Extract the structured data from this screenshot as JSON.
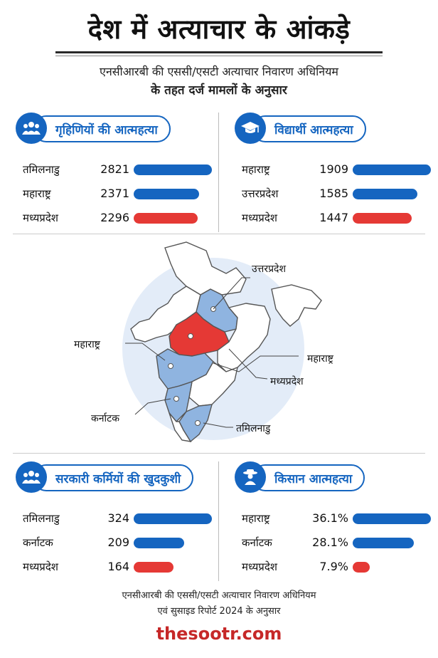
{
  "title": "देश में अत्याचार के आंकड़े",
  "subtitle_line1": "एनसीआरबी की एससी/एसटी अत्याचार निवारण अधिनियम",
  "subtitle_line2": "के तहत दर्ज मामलों के अनुसार",
  "map_labels": {
    "up": "उत्तरप्रदेश",
    "mh_left": "महाराष्ट्र",
    "mh_right": "महाराष्ट्र",
    "mp": "मध्यप्रदेश",
    "ka": "कर्नाटक",
    "tn": "तमिलनाडु"
  },
  "footer_line1": "एनसीआरबी की एससी/एसटी अत्याचार निवारण अधिनियम",
  "footer_line2": "एवं सुसाइड रिपोर्ट 2024 के अनुसार",
  "brand": "thesootr.com",
  "colors": {
    "blue": "#1565c0",
    "red": "#e53935",
    "map_blue": "#8fb4e0",
    "map_red": "#e53935",
    "halo": "#e3ecf8"
  },
  "chart_data": [
    {
      "type": "bar",
      "title": "गृहिणियों की आत्महत्या",
      "icon": "group-icon",
      "categories": [
        "तमिलनाडु",
        "महाराष्ट्र",
        "मध्यप्रदेश"
      ],
      "values": [
        2821,
        2371,
        2296
      ],
      "labels": [
        "2821",
        "2371",
        "2296"
      ],
      "highlight_colors": [
        "#1565c0",
        "#1565c0",
        "#e53935"
      ]
    },
    {
      "type": "bar",
      "title": "विद्यार्थी आत्महत्या",
      "icon": "graduation-cap-icon",
      "categories": [
        "महाराष्ट्र",
        "उत्तरप्रदेश",
        "मध्यप्रदेश"
      ],
      "values": [
        1909,
        1585,
        1447
      ],
      "labels": [
        "1909",
        "1585",
        "1447"
      ],
      "highlight_colors": [
        "#1565c0",
        "#1565c0",
        "#e53935"
      ]
    },
    {
      "type": "bar",
      "title": "सरकारी कर्मियों की खुदकुशी",
      "icon": "group-icon",
      "categories": [
        "तमिलनाडु",
        "कर्नाटक",
        "मध्यप्रदेश"
      ],
      "values": [
        324,
        209,
        164
      ],
      "labels": [
        "324",
        "209",
        "164"
      ],
      "highlight_colors": [
        "#1565c0",
        "#1565c0",
        "#e53935"
      ]
    },
    {
      "type": "bar",
      "title": "किसान आत्महत्या",
      "icon": "farmer-icon",
      "categories": [
        "महाराष्ट्र",
        "कर्नाटक",
        "मध्यप्रदेश"
      ],
      "values": [
        36.1,
        28.1,
        7.9
      ],
      "labels": [
        "36.1%",
        "28.1%",
        "7.9%"
      ],
      "highlight_colors": [
        "#1565c0",
        "#1565c0",
        "#e53935"
      ]
    }
  ]
}
